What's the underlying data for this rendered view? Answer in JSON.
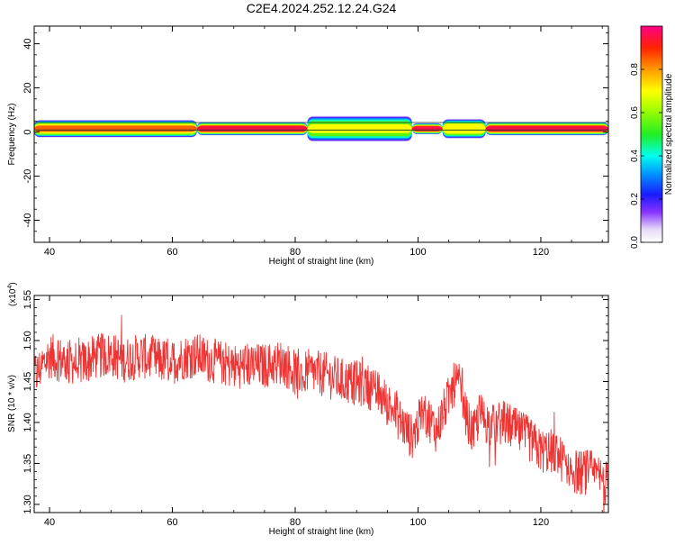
{
  "title": "C2E4.2024.252.12.24.G24",
  "chart_data": [
    {
      "type": "heatmap",
      "xlabel": "Height of straight line (km)",
      "ylabel": "Frequency (Hz)",
      "xlim": [
        37.5,
        131
      ],
      "ylim": [
        -50,
        48
      ],
      "x_ticks": [
        40,
        60,
        80,
        100,
        120
      ],
      "y_ticks": [
        40,
        20,
        0,
        -20,
        -40
      ],
      "band_center_hz": 1.5,
      "band_segments": [
        {
          "x_start": 37.5,
          "x_end": 64,
          "halfwidth_hz": 3.5,
          "peak": 0.85
        },
        {
          "x_start": 64,
          "x_end": 82,
          "halfwidth_hz": 2.5,
          "peak": 0.95
        },
        {
          "x_start": 82,
          "x_end": 99,
          "halfwidth_hz": 5.5,
          "peak": 0.7
        },
        {
          "x_start": 99,
          "x_end": 104,
          "halfwidth_hz": 2.0,
          "peak": 0.95
        },
        {
          "x_start": 104,
          "x_end": 111,
          "halfwidth_hz": 4.0,
          "peak": 0.8
        },
        {
          "x_start": 111,
          "x_end": 131,
          "halfwidth_hz": 2.5,
          "peak": 0.95
        }
      ],
      "colorbar": {
        "label": "Normalized spectral amplitude",
        "range": [
          0.0,
          1.0
        ],
        "ticks": [
          "0.0",
          "0.2",
          "0.4",
          "0.6",
          "0.8"
        ],
        "colormap": "rainbow (white-purple-blue-cyan-green-yellow-orange-red-magenta)"
      }
    },
    {
      "type": "line",
      "xlabel": "Height of straight line (km)",
      "ylabel": "SNR (10 * v/v)",
      "y_multiplier_label": "(x10",
      "y_multiplier_exp": "4",
      "y_multiplier_close": ")",
      "xlim": [
        37.5,
        131
      ],
      "ylim": [
        1.29,
        1.555
      ],
      "x_ticks": [
        40,
        60,
        80,
        100,
        120
      ],
      "y_ticks": [
        "1.55",
        "1.50",
        "1.45",
        "1.40",
        "1.35",
        "1.30"
      ],
      "line_color": "#ee3333",
      "series": [
        {
          "x": [
            38,
            40,
            42,
            45,
            48,
            50,
            52,
            55,
            57,
            60,
            62,
            64,
            66,
            68,
            70,
            72,
            75,
            78,
            80,
            82,
            84,
            85,
            86,
            88,
            90,
            92,
            94,
            96,
            98,
            99,
            100,
            101,
            102,
            103,
            104,
            105,
            106,
            107,
            108,
            109,
            110,
            112,
            114,
            116,
            118,
            120,
            122,
            124,
            126,
            128,
            130,
            131
          ],
          "y": [
            1.46,
            1.482,
            1.476,
            1.472,
            1.481,
            1.483,
            1.476,
            1.482,
            1.476,
            1.474,
            1.48,
            1.482,
            1.476,
            1.473,
            1.468,
            1.47,
            1.469,
            1.474,
            1.46,
            1.462,
            1.46,
            1.458,
            1.455,
            1.45,
            1.448,
            1.444,
            1.432,
            1.415,
            1.392,
            1.382,
            1.398,
            1.412,
            1.402,
            1.39,
            1.41,
            1.43,
            1.448,
            1.442,
            1.402,
            1.385,
            1.41,
            1.395,
            1.4,
            1.39,
            1.38,
            1.365,
            1.365,
            1.35,
            1.338,
            1.34,
            1.33,
            1.325
          ],
          "noise_amplitude": 0.028
        }
      ]
    }
  ]
}
